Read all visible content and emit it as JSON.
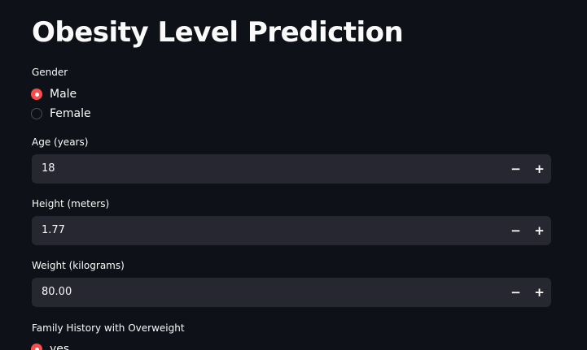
{
  "page": {
    "title": "Obesity Level Prediction"
  },
  "gender": {
    "label": "Gender",
    "options": [
      "Male",
      "Female"
    ],
    "selected": "Male"
  },
  "age": {
    "label": "Age (years)",
    "value": "18",
    "decrement": "−",
    "increment": "+"
  },
  "height": {
    "label": "Height (meters)",
    "value": "1.77",
    "decrement": "−",
    "increment": "+"
  },
  "weight": {
    "label": "Weight (kilograms)",
    "value": "80.00",
    "decrement": "−",
    "increment": "+"
  },
  "family_history": {
    "label": "Family History with Overweight",
    "options": [
      "yes"
    ],
    "selected": "yes"
  },
  "colors": {
    "background": "#0e1117",
    "input_bg": "#262730",
    "accent": "#ff4b4b",
    "text": "#fafafa"
  }
}
